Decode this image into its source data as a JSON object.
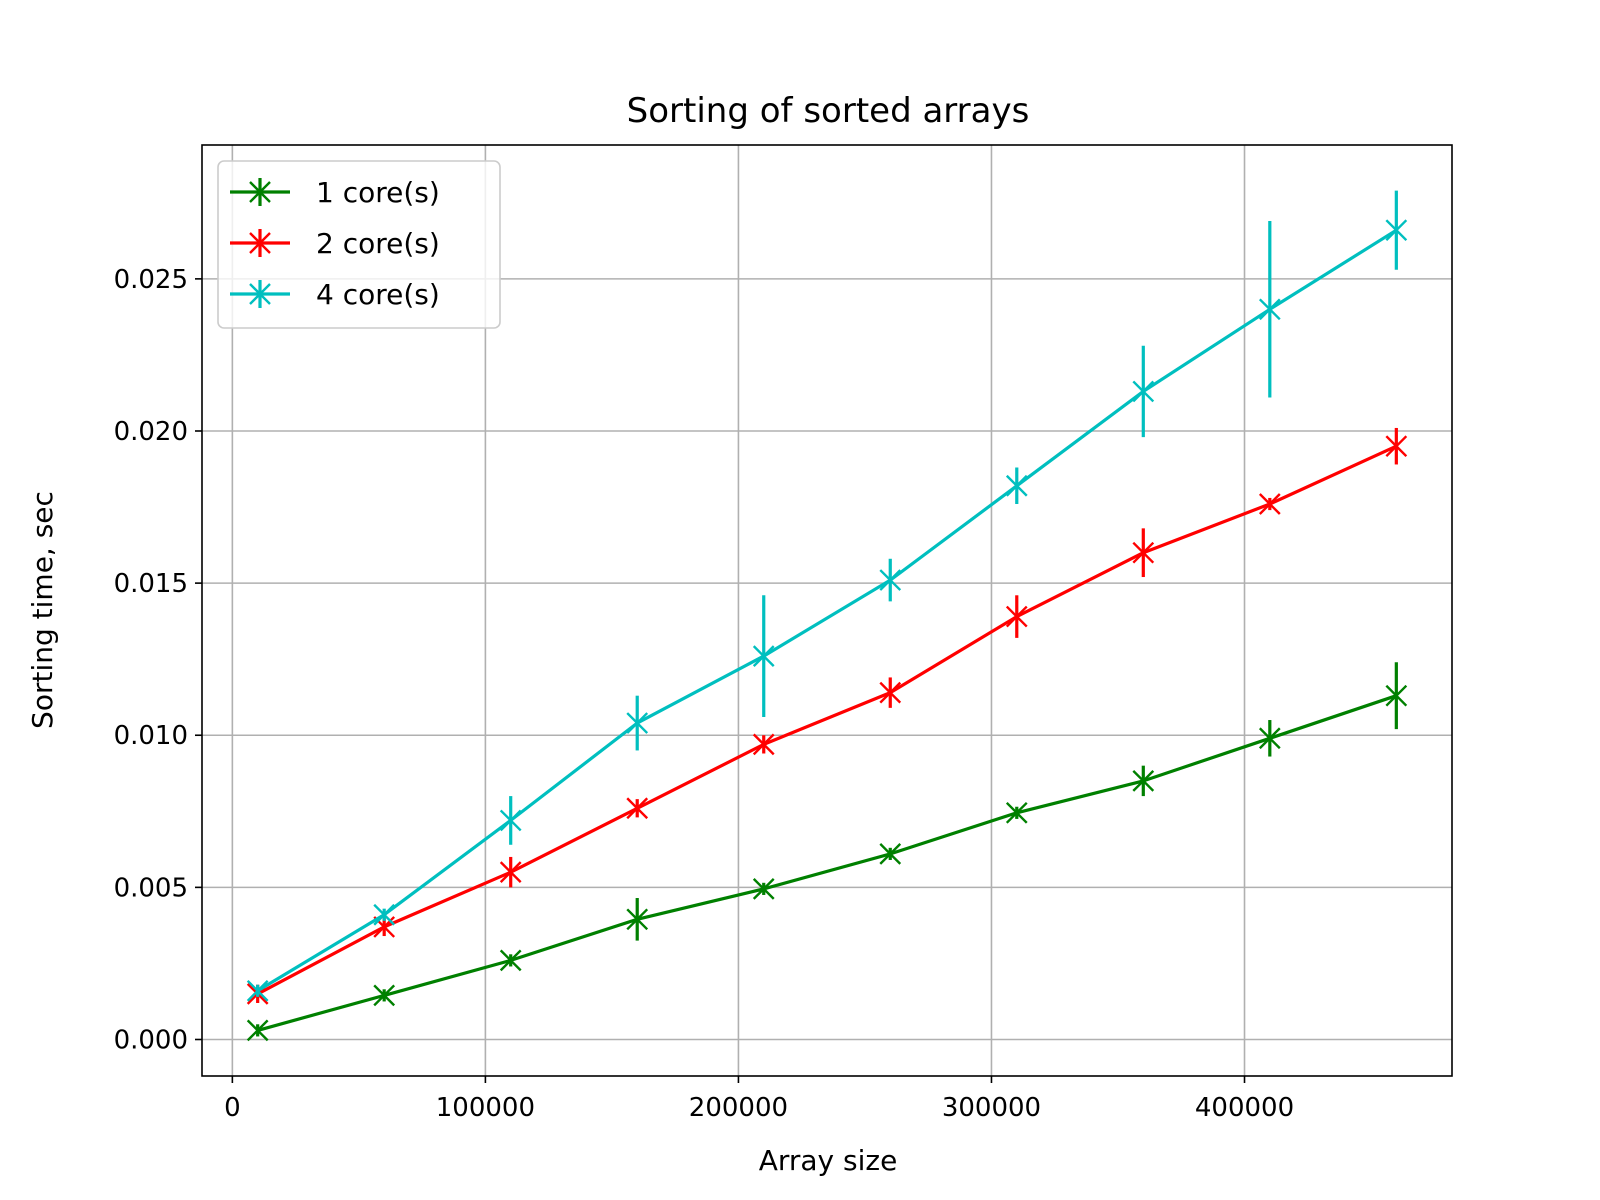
{
  "chart_data": {
    "type": "line",
    "title": "Sorting of sorted arrays",
    "xlabel": "Array size",
    "ylabel": "Sorting time, sec",
    "xlim": [
      -12000,
      482000
    ],
    "ylim": [
      -0.0012,
      0.0294
    ],
    "xticks": [
      0,
      100000,
      200000,
      300000,
      400000
    ],
    "xtick_labels": [
      "0",
      "100000",
      "200000",
      "300000",
      "400000"
    ],
    "yticks": [
      0.0,
      0.005,
      0.01,
      0.015,
      0.02,
      0.025
    ],
    "ytick_labels": [
      "0.000",
      "0.005",
      "0.010",
      "0.015",
      "0.020",
      "0.025"
    ],
    "grid": true,
    "legend_position": "upper-left",
    "x": [
      10000,
      60000,
      110000,
      160000,
      210000,
      260000,
      310000,
      360000,
      410000,
      460000
    ],
    "series": [
      {
        "name": "1 core(s)",
        "color": "#008000",
        "values": [
          0.0003,
          0.00145,
          0.0026,
          0.00395,
          0.00495,
          0.0061,
          0.00745,
          0.0085,
          0.0099,
          0.0113
        ],
        "errors": [
          0.0002,
          0.0002,
          0.0002,
          0.0007,
          0.0002,
          0.0002,
          0.0002,
          0.0005,
          0.0006,
          0.0011
        ]
      },
      {
        "name": "2 core(s)",
        "color": "#ff0000",
        "values": [
          0.0015,
          0.0037,
          0.0055,
          0.0076,
          0.0097,
          0.0114,
          0.0139,
          0.016,
          0.0176,
          0.0195
        ],
        "errors": [
          0.0003,
          0.0003,
          0.0005,
          0.0003,
          0.0003,
          0.0005,
          0.0007,
          0.0008,
          0.0002,
          0.0006
        ]
      },
      {
        "name": "4 core(s)",
        "color": "#00bfbf",
        "values": [
          0.0016,
          0.0041,
          0.0072,
          0.0104,
          0.0126,
          0.0151,
          0.0182,
          0.0213,
          0.024,
          0.0266
        ],
        "errors": [
          0.0002,
          0.0002,
          0.0008,
          0.0009,
          0.002,
          0.0007,
          0.0006,
          0.0015,
          0.0029,
          0.0013
        ]
      }
    ]
  }
}
